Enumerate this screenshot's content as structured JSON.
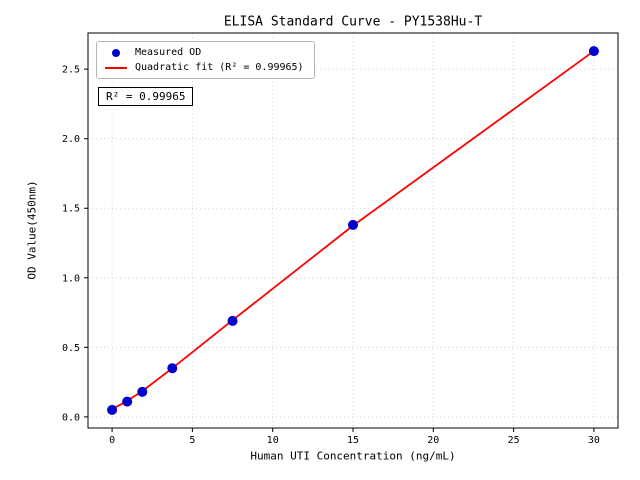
{
  "chart_data": {
    "type": "scatter",
    "title": "ELISA Standard Curve - PY1538Hu-T",
    "xlabel": "Human UTI Concentration (ng/mL)",
    "ylabel": "OD Value(450nm)",
    "xlim": [
      -1.5,
      31.5
    ],
    "ylim": [
      -0.08,
      2.76
    ],
    "xticks": [
      0,
      5,
      10,
      15,
      20,
      25,
      30
    ],
    "xtick_labels": [
      "0",
      "5",
      "10",
      "15",
      "20",
      "25",
      "30"
    ],
    "yticks": [
      0.0,
      0.5,
      1.0,
      1.5,
      2.0,
      2.5
    ],
    "ytick_labels": [
      "0.0",
      "0.5",
      "1.0",
      "1.5",
      "2.0",
      "2.5"
    ],
    "grid": true,
    "grid_color": "#c8c8c8",
    "frame_color": "#000000",
    "series": [
      {
        "name": "Measured OD",
        "kind": "scatter",
        "color": "#0000cd",
        "x": [
          0,
          0.94,
          1.88,
          3.75,
          7.5,
          15,
          30
        ],
        "y": [
          0.05,
          0.11,
          0.18,
          0.35,
          0.69,
          1.38,
          2.63
        ]
      },
      {
        "name": "Quadratic fit (R² = 0.99965)",
        "kind": "line",
        "color": "#ff0000",
        "x": [
          0,
          0.94,
          1.88,
          3.75,
          7.5,
          15,
          30
        ],
        "y": [
          0.055,
          0.115,
          0.185,
          0.35,
          0.695,
          1.375,
          2.63
        ]
      }
    ],
    "legend": {
      "position": "upper-left",
      "entries": [
        {
          "label": "Measured OD",
          "marker": "point",
          "color": "#0000cd"
        },
        {
          "label": "Quadratic fit (R² = 0.99965)",
          "marker": "line",
          "color": "#ff0000"
        }
      ]
    },
    "annotation": {
      "text": "R² = 0.99965"
    }
  }
}
